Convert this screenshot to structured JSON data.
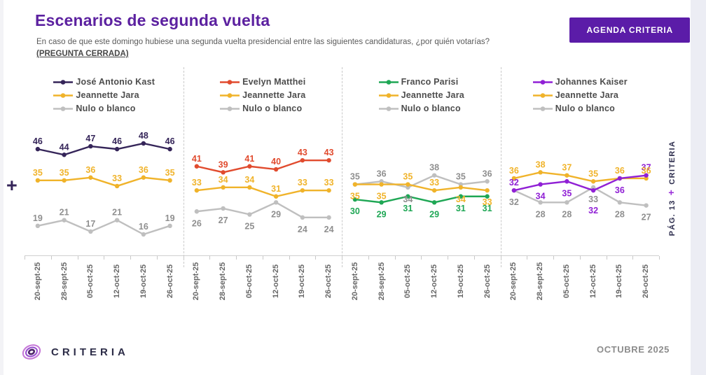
{
  "header": {
    "title": "Escenarios de segunda vuelta",
    "subtitle": "En caso de que este domingo hubiese una segunda vuelta presidencial entre las siguientes candidaturas, ¿por quién votarías?",
    "subtitle_note": "(PREGUNTA CERRADA)",
    "button_label": "AGENDA CRITERIA"
  },
  "decorations": {
    "left_plus": "+"
  },
  "side_vertical": {
    "page_label": "PÁG. 13",
    "plus": "+",
    "brand": "CRITERIA"
  },
  "footer": {
    "brand": "CRITERIA",
    "date": "OCTUBRE 2025"
  },
  "colors": {
    "accent_purple": "#5B1CA8",
    "title_purple": "#5C21A0",
    "axis_gray": "#CFCFCF",
    "legend_text": "#4D4D4D"
  },
  "chart_data": [
    {
      "type": "line",
      "legend_position": "top",
      "grid": false,
      "categories": [
        "20-sept-25",
        "28-sept-25",
        "05-oct-25",
        "12-oct-25",
        "19-oct-25",
        "26-oct-25"
      ],
      "series": [
        {
          "name": "José Antonio Kast",
          "color": "#352559",
          "label_color": "#352559",
          "values": [
            46,
            44,
            47,
            46,
            48,
            46
          ]
        },
        {
          "name": "Jeannette Jara",
          "color": "#F0B32A",
          "label_color": "#F0B32A",
          "values": [
            35,
            35,
            36,
            33,
            36,
            35
          ]
        },
        {
          "name": "Nulo o blanco",
          "color": "#BFBFBF",
          "label_color": "#8F8F8F",
          "values": [
            19,
            21,
            17,
            21,
            16,
            19
          ]
        }
      ]
    },
    {
      "type": "line",
      "legend_position": "top",
      "grid": false,
      "categories": [
        "20-sept-25",
        "28-sept-25",
        "05-oct-25",
        "12-oct-25",
        "19-oct-25",
        "26-oct-25"
      ],
      "series": [
        {
          "name": "Evelyn Matthei",
          "color": "#E14B2E",
          "label_color": "#E14B2E",
          "values": [
            41,
            39,
            41,
            40,
            43,
            43
          ]
        },
        {
          "name": "Jeannette Jara",
          "color": "#F0B32A",
          "label_color": "#F0B32A",
          "values": [
            33,
            34,
            34,
            31,
            33,
            33
          ]
        },
        {
          "name": "Nulo o blanco",
          "color": "#BFBFBF",
          "label_color": "#8F8F8F",
          "values": [
            26,
            27,
            25,
            29,
            24,
            24
          ]
        }
      ]
    },
    {
      "type": "line",
      "legend_position": "top",
      "grid": false,
      "categories": [
        "20-sept-25",
        "28-sept-25",
        "05-oct-25",
        "12-oct-25",
        "19-oct-25",
        "26-oct-25"
      ],
      "series": [
        {
          "name": "Franco Parisi",
          "color": "#1FA755",
          "label_color": "#1FA755",
          "values": [
            30,
            29,
            31,
            29,
            31,
            31
          ]
        },
        {
          "name": "Jeannette Jara",
          "color": "#F0B32A",
          "label_color": "#F0B32A",
          "values": [
            35,
            35,
            35,
            33,
            34,
            33
          ]
        },
        {
          "name": "Nulo o blanco",
          "color": "#BFBFBF",
          "label_color": "#8F8F8F",
          "values": [
            35,
            36,
            34,
            38,
            35,
            36
          ]
        }
      ]
    },
    {
      "type": "line",
      "legend_position": "top",
      "grid": false,
      "categories": [
        "20-sept-25",
        "28-sept-25",
        "05-oct-25",
        "12-oct-25",
        "19-oct-25",
        "26-oct-25"
      ],
      "series": [
        {
          "name": "Johannes Kaiser",
          "color": "#9020D5",
          "label_color": "#9020D5",
          "values": [
            32,
            34,
            35,
            32,
            36,
            37
          ]
        },
        {
          "name": "Jeannette Jara",
          "color": "#F0B32A",
          "label_color": "#F0B32A",
          "values": [
            36,
            38,
            37,
            35,
            36,
            36
          ]
        },
        {
          "name": "Nulo o blanco",
          "color": "#BFBFBF",
          "label_color": "#8F8F8F",
          "values": [
            32,
            28,
            28,
            33,
            28,
            27
          ]
        }
      ]
    }
  ]
}
